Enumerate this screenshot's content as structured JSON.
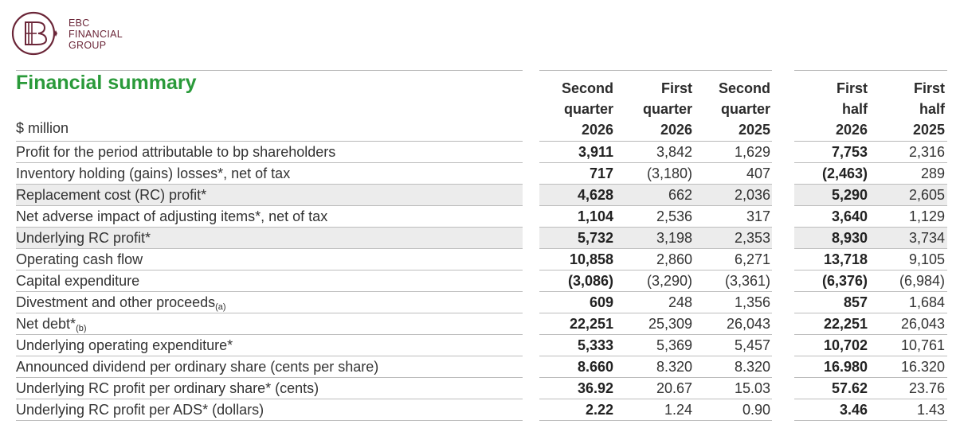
{
  "brand": {
    "line1": "EBC",
    "line2": "FINANCIAL",
    "line3": "GROUP",
    "color": "#6b2638"
  },
  "title": "Financial summary",
  "unit": "$ million",
  "columns": [
    {
      "line1": "Second",
      "line2": "quarter",
      "line3": "2026"
    },
    {
      "line1": "First",
      "line2": "quarter",
      "line3": "2026"
    },
    {
      "line1": "Second",
      "line2": "quarter",
      "line3": "2025"
    },
    {
      "line1": "First",
      "line2": "half",
      "line3": "2026"
    },
    {
      "line1": "First",
      "line2": "half",
      "line3": "2025"
    }
  ],
  "rows": [
    {
      "label": "Profit for the period attributable to bp shareholders",
      "note": "",
      "shaded": false,
      "values": [
        "3,911",
        "3,842",
        "1,629",
        "7,753",
        "2,316"
      ]
    },
    {
      "label": "Inventory holding (gains) losses*, net of tax",
      "note": "",
      "shaded": false,
      "values": [
        "717",
        "(3,180)",
        "407",
        "(2,463)",
        "289"
      ]
    },
    {
      "label": "Replacement cost (RC) profit*",
      "note": "",
      "shaded": true,
      "values": [
        "4,628",
        "662",
        "2,036",
        "5,290",
        "2,605"
      ]
    },
    {
      "label": "Net adverse impact of adjusting items*, net of tax",
      "note": "",
      "shaded": false,
      "values": [
        "1,104",
        "2,536",
        "317",
        "3,640",
        "1,129"
      ]
    },
    {
      "label": "Underlying RC profit*",
      "note": "",
      "shaded": true,
      "values": [
        "5,732",
        "3,198",
        "2,353",
        "8,930",
        "3,734"
      ]
    },
    {
      "label": "Operating cash flow",
      "note": "",
      "shaded": false,
      "values": [
        "10,858",
        "2,860",
        "6,271",
        "13,718",
        "9,105"
      ]
    },
    {
      "label": "Capital expenditure",
      "note": "",
      "shaded": false,
      "values": [
        "(3,086)",
        "(3,290)",
        "(3,361)",
        "(6,376)",
        "(6,984)"
      ]
    },
    {
      "label": "Divestment and other proceeds",
      "note": "(a)",
      "shaded": false,
      "values": [
        "609",
        "248",
        "1,356",
        "857",
        "1,684"
      ]
    },
    {
      "label": "Net debt*",
      "note": "(b)",
      "shaded": false,
      "values": [
        "22,251",
        "25,309",
        "26,043",
        "22,251",
        "26,043"
      ]
    },
    {
      "label": "Underlying operating expenditure*",
      "note": "",
      "shaded": false,
      "values": [
        "5,333",
        "5,369",
        "5,457",
        "10,702",
        "10,761"
      ]
    },
    {
      "label": "Announced dividend per ordinary share (cents per share)",
      "note": "",
      "shaded": false,
      "values": [
        "8.660",
        "8.320",
        "8.320",
        "16.980",
        "16.320"
      ]
    },
    {
      "label": "Underlying RC profit per ordinary share* (cents)",
      "note": "",
      "shaded": false,
      "values": [
        "36.92",
        "20.67",
        "15.03",
        "57.62",
        "23.76"
      ]
    },
    {
      "label": "Underlying RC profit per ADS* (dollars)",
      "note": "",
      "shaded": false,
      "values": [
        "2.22",
        "1.24",
        "0.90",
        "3.46",
        "1.43"
      ]
    }
  ]
}
